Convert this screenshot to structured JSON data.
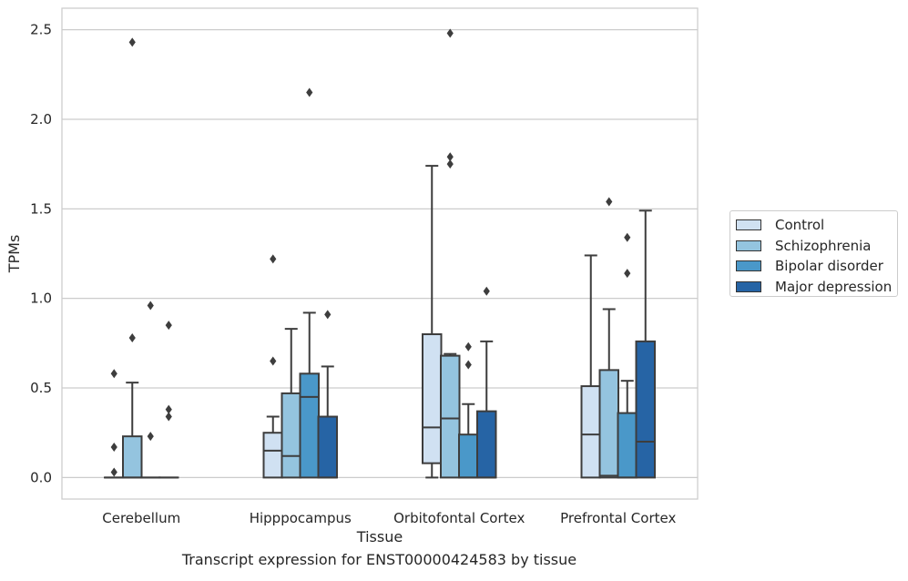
{
  "caption": "Transcript expression for ENST00000424583 by tissue",
  "chart_data": {
    "type": "box",
    "xlabel": "Tissue",
    "ylabel": "TPMs",
    "ylim": [
      -0.12,
      2.62
    ],
    "yticks": [
      "0.0",
      "0.5",
      "1.0",
      "1.5",
      "2.0",
      "2.5"
    ],
    "grid": true,
    "legend_position": "right",
    "categories": [
      "Cerebellum",
      "Hipppocampus",
      "Orbitofontal Cortex",
      "Prefrontal Cortex"
    ],
    "series": [
      {
        "name": "Control",
        "color": "#d0e1f2",
        "boxes": [
          {
            "q1": 0.0,
            "median": 0.0,
            "q3": 0.0,
            "whislo": 0.0,
            "whishi": 0.0,
            "outliers": [
              0.03,
              0.17,
              0.58
            ]
          },
          {
            "q1": 0.0,
            "median": 0.15,
            "q3": 0.25,
            "whislo": 0.0,
            "whishi": 0.34,
            "outliers": [
              0.65,
              1.22
            ]
          },
          {
            "q1": 0.08,
            "median": 0.28,
            "q3": 0.8,
            "whislo": 0.0,
            "whishi": 1.74,
            "outliers": []
          },
          {
            "q1": 0.0,
            "median": 0.24,
            "q3": 0.51,
            "whislo": 0.0,
            "whishi": 1.24,
            "outliers": []
          }
        ]
      },
      {
        "name": "Schizophrenia",
        "color": "#94c4df",
        "boxes": [
          {
            "q1": 0.0,
            "median": 0.0,
            "q3": 0.23,
            "whislo": 0.0,
            "whishi": 0.53,
            "outliers": [
              0.78,
              2.43
            ]
          },
          {
            "q1": 0.0,
            "median": 0.12,
            "q3": 0.47,
            "whislo": 0.0,
            "whishi": 0.83,
            "outliers": []
          },
          {
            "q1": 0.0,
            "median": 0.33,
            "q3": 0.68,
            "whislo": 0.0,
            "whishi": 0.69,
            "outliers": [
              1.75,
              1.79,
              2.48
            ]
          },
          {
            "q1": 0.0,
            "median": 0.01,
            "q3": 0.6,
            "whislo": 0.0,
            "whishi": 0.94,
            "outliers": [
              1.54
            ]
          }
        ]
      },
      {
        "name": "Bipolar disorder",
        "color": "#4a98c9",
        "boxes": [
          {
            "q1": 0.0,
            "median": 0.0,
            "q3": 0.0,
            "whislo": 0.0,
            "whishi": 0.0,
            "outliers": [
              0.23,
              0.96
            ]
          },
          {
            "q1": 0.0,
            "median": 0.45,
            "q3": 0.58,
            "whislo": 0.0,
            "whishi": 0.92,
            "outliers": [
              2.15
            ]
          },
          {
            "q1": 0.0,
            "median": 0.0,
            "q3": 0.24,
            "whislo": 0.0,
            "whishi": 0.41,
            "outliers": [
              0.63,
              0.73
            ]
          },
          {
            "q1": 0.0,
            "median": 0.0,
            "q3": 0.36,
            "whislo": 0.0,
            "whishi": 0.54,
            "outliers": [
              1.14,
              1.34
            ]
          }
        ]
      },
      {
        "name": "Major depression",
        "color": "#2664a5",
        "boxes": [
          {
            "q1": 0.0,
            "median": 0.0,
            "q3": 0.0,
            "whislo": 0.0,
            "whishi": 0.0,
            "outliers": [
              0.34,
              0.38,
              0.85
            ]
          },
          {
            "q1": 0.0,
            "median": 0.0,
            "q3": 0.34,
            "whislo": 0.0,
            "whishi": 0.62,
            "outliers": [
              0.91
            ]
          },
          {
            "q1": 0.0,
            "median": 0.0,
            "q3": 0.37,
            "whislo": 0.0,
            "whishi": 0.76,
            "outliers": [
              1.04
            ]
          },
          {
            "q1": 0.0,
            "median": 0.2,
            "q3": 0.76,
            "whislo": 0.0,
            "whishi": 1.49,
            "outliers": []
          }
        ]
      }
    ]
  }
}
